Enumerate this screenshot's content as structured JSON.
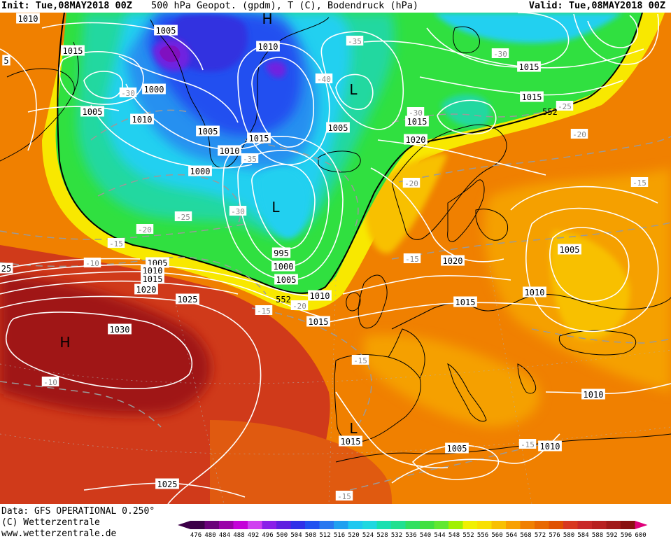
{
  "header": {
    "init": "Init: Tue,08MAY2018 00Z",
    "title": "500 hPa Geopot. (gpdm), T (C), Bodendruck (hPa)",
    "valid": "Valid: Tue,08MAY2018 00Z"
  },
  "footer": {
    "line1": "Data: GFS OPERATIONAL 0.250°",
    "line2": "(C) Wetterzentrale",
    "line3": "www.wetterzentrale.de"
  },
  "colorbar": {
    "labels": [
      "476",
      "480",
      "484",
      "488",
      "492",
      "496",
      "500",
      "504",
      "508",
      "512",
      "516",
      "520",
      "524",
      "528",
      "532",
      "536",
      "540",
      "544",
      "548",
      "552",
      "556",
      "560",
      "564",
      "568",
      "572",
      "576",
      "580",
      "584",
      "588",
      "592",
      "596",
      "600"
    ],
    "colors": [
      "#3c0048",
      "#6a007a",
      "#9a00a8",
      "#c400d8",
      "#d040f0",
      "#8a20e8",
      "#6020e0",
      "#3030e8",
      "#2050f0",
      "#2878f0",
      "#20a0f0",
      "#20c8f0",
      "#20d8e0",
      "#18e0b0",
      "#20e090",
      "#30e060",
      "#40e040",
      "#60e830",
      "#a0f000",
      "#f0f000",
      "#f8e000",
      "#f8c000",
      "#f8a000",
      "#f08000",
      "#e86800",
      "#e05000",
      "#d83820",
      "#c82828",
      "#b82020",
      "#a01818",
      "#8a1010",
      "#e0007a"
    ]
  },
  "map_colors": {
    "deep_red": "#a01818",
    "red": "#d03a1a",
    "orange_red": "#e05a10",
    "orange": "#f08000",
    "orange_light": "#f5a000",
    "yellow_orange": "#f8c000",
    "yellow": "#f8e800",
    "green": "#30e040",
    "green_cyan": "#20d8a0",
    "cyan": "#20d0f0",
    "light_blue": "#2890f0",
    "blue": "#2050f0",
    "dark_blue": "#3030e0",
    "violet": "#7020e0",
    "purple": "#8010c0"
  },
  "pressure_labels": [
    {
      "id": "p1",
      "text": "1010"
    },
    {
      "id": "p2",
      "text": "1005"
    },
    {
      "id": "p3",
      "text": "1015"
    },
    {
      "id": "p4",
      "text": "1000"
    },
    {
      "id": "p5",
      "text": "1005"
    },
    {
      "id": "p6",
      "text": "1010"
    },
    {
      "id": "p7",
      "text": "1010"
    },
    {
      "id": "p8",
      "text": "1015"
    },
    {
      "id": "p9",
      "text": "1005"
    },
    {
      "id": "p10",
      "text": "1010"
    },
    {
      "id": "p11",
      "text": "1000"
    },
    {
      "id": "p12",
      "text": "1015"
    },
    {
      "id": "p13",
      "text": "1005"
    },
    {
      "id": "p14",
      "text": "1015"
    },
    {
      "id": "p15",
      "text": "1015"
    },
    {
      "id": "p16",
      "text": "1020"
    },
    {
      "id": "p17",
      "text": "995"
    },
    {
      "id": "p18",
      "text": "1000"
    },
    {
      "id": "p19",
      "text": "1005"
    },
    {
      "id": "p20",
      "text": "1005"
    },
    {
      "id": "p21",
      "text": "1010"
    },
    {
      "id": "p22",
      "text": "1015"
    },
    {
      "id": "p23",
      "text": "1020"
    },
    {
      "id": "p24",
      "text": "1025"
    },
    {
      "id": "p25",
      "text": "1010"
    },
    {
      "id": "p26",
      "text": "1015"
    },
    {
      "id": "p27",
      "text": "1020"
    },
    {
      "id": "p28",
      "text": "1015"
    },
    {
      "id": "p29",
      "text": "1005"
    },
    {
      "id": "p30",
      "text": "1010"
    },
    {
      "id": "p31",
      "text": "1030"
    },
    {
      "id": "p32",
      "text": "1010"
    },
    {
      "id": "p33",
      "text": "1015"
    },
    {
      "id": "p34",
      "text": "1005"
    },
    {
      "id": "p35",
      "text": "1010"
    },
    {
      "id": "p36",
      "text": "1025"
    }
  ],
  "temp_labels": [
    {
      "id": "t1",
      "text": "-35"
    },
    {
      "id": "t2",
      "text": "-30"
    },
    {
      "id": "t3",
      "text": "-30"
    },
    {
      "id": "t4",
      "text": "-40"
    },
    {
      "id": "t5",
      "text": "-25"
    },
    {
      "id": "t6",
      "text": "-30"
    },
    {
      "id": "t7",
      "text": "-35"
    },
    {
      "id": "t8",
      "text": "-20"
    },
    {
      "id": "t9",
      "text": "-30"
    },
    {
      "id": "t10",
      "text": "-25"
    },
    {
      "id": "t11",
      "text": "-20"
    },
    {
      "id": "t12",
      "text": "-15"
    },
    {
      "id": "t13",
      "text": "-10"
    },
    {
      "id": "t14",
      "text": "-20"
    },
    {
      "id": "t15",
      "text": "-15"
    },
    {
      "id": "t16",
      "text": "-20"
    },
    {
      "id": "t17",
      "text": "-15"
    },
    {
      "id": "t18",
      "text": "-15"
    },
    {
      "id": "t19",
      "text": "-10"
    },
    {
      "id": "t20",
      "text": "-15"
    },
    {
      "id": "t21",
      "text": "-15"
    },
    {
      "id": "t22",
      "text": "-15"
    }
  ],
  "geopot_labels": [
    {
      "id": "g1",
      "text": "552"
    },
    {
      "id": "g2",
      "text": "552"
    }
  ],
  "centers": [
    {
      "id": "c1",
      "text": "H"
    },
    {
      "id": "c2",
      "text": "L"
    },
    {
      "id": "c3",
      "text": "L"
    },
    {
      "id": "c4",
      "text": "H"
    },
    {
      "id": "c5",
      "text": "L"
    }
  ],
  "edge_labels": [
    {
      "id": "e1",
      "text": "5"
    },
    {
      "id": "e2",
      "text": "25"
    }
  ]
}
